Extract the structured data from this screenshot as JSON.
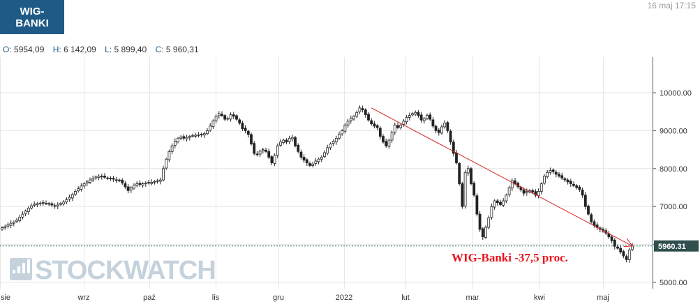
{
  "header": {
    "index_badge": "WIG-\nBANKI",
    "datetime": "16 maj 17:15",
    "ohlc": [
      {
        "label": "O:",
        "value": "5954,09"
      },
      {
        "label": "H:",
        "value": "6 142,09"
      },
      {
        "label": "L:",
        "value": "5 899,40"
      },
      {
        "label": "C:",
        "value": "5 960,31"
      }
    ]
  },
  "watermark": "STOCKWATCH",
  "colors": {
    "grid": "#e6e6e6",
    "trend": "#d62728",
    "annotation": "#e8141c",
    "price_box": "#2f4f4f",
    "up": "#ffffff",
    "down": "#222222"
  },
  "chart_data": {
    "type": "candlestick",
    "title": "",
    "ylim": [
      4900,
      10800
    ],
    "y_ticks": [
      5000,
      6000,
      7000,
      8000,
      9000,
      10000
    ],
    "y_tick_labels": [
      "5000.00",
      "6000.00",
      "7000.00",
      "8000.00",
      "9000.00",
      "10000.00"
    ],
    "x_tick_labels": [
      "sie",
      "wrz",
      "paź",
      "lis",
      "gru",
      "2022",
      "lut",
      "mar",
      "kwi",
      "maj"
    ],
    "last_price": 5960.31,
    "last_price_label": "5960.31",
    "annotation": "WIG-Banki -37,5 proc.",
    "trendline": {
      "from": {
        "candle": 126,
        "value": 9600
      },
      "to": {
        "candle": 215,
        "value": 5960
      }
    },
    "close": [
      6440,
      6470,
      6520,
      6560,
      6590,
      6640,
      6720,
      6800,
      6880,
      6960,
      7020,
      7060,
      7080,
      7090,
      7100,
      7080,
      7060,
      7040,
      7010,
      7040,
      7080,
      7120,
      7180,
      7240,
      7320,
      7400,
      7470,
      7540,
      7600,
      7650,
      7700,
      7740,
      7780,
      7800,
      7790,
      7770,
      7750,
      7730,
      7720,
      7700,
      7680,
      7620,
      7520,
      7420,
      7500,
      7560,
      7600,
      7580,
      7600,
      7620,
      7620,
      7640,
      7660,
      7680,
      7700,
      8000,
      8250,
      8450,
      8600,
      8720,
      8800,
      8830,
      8800,
      8820,
      8850,
      8870,
      8880,
      8890,
      8900,
      8920,
      9000,
      9120,
      9260,
      9380,
      9450,
      9400,
      9300,
      9320,
      9420,
      9380,
      9300,
      9200,
      9050,
      9000,
      8900,
      8650,
      8400,
      8380,
      8460,
      8500,
      8450,
      8300,
      8150,
      8350,
      8600,
      8700,
      8750,
      8700,
      8800,
      8820,
      8600,
      8450,
      8300,
      8220,
      8150,
      8080,
      8120,
      8200,
      8250,
      8300,
      8420,
      8550,
      8650,
      8720,
      8800,
      8900,
      9000,
      9150,
      9250,
      9320,
      9380,
      9480,
      9600,
      9550,
      9420,
      9280,
      9180,
      9120,
      9080,
      8850,
      8700,
      8600,
      8750,
      8950,
      9150,
      9080,
      9150,
      9250,
      9350,
      9400,
      9450,
      9480,
      9400,
      9280,
      9320,
      9400,
      9300,
      9120,
      9000,
      8950,
      9100,
      9200,
      9000,
      8700,
      8400,
      8150,
      7600,
      7000,
      7900,
      8000,
      7600,
      7300,
      6800,
      6400,
      6200,
      6450,
      6700,
      7000,
      7150,
      7100,
      7050,
      7150,
      7300,
      7500,
      7680,
      7600,
      7520,
      7440,
      7350,
      7400,
      7420,
      7380,
      7300,
      7400,
      7600,
      7800,
      7900,
      7950,
      7920,
      7850,
      7800,
      7750,
      7700,
      7650,
      7600,
      7550,
      7500,
      7450,
      7300,
      7000,
      6800,
      6600,
      6500,
      6450,
      6400,
      6350,
      6300,
      6200,
      6100,
      5950,
      5900,
      5800,
      5700,
      5600,
      5850,
      5960
    ]
  }
}
